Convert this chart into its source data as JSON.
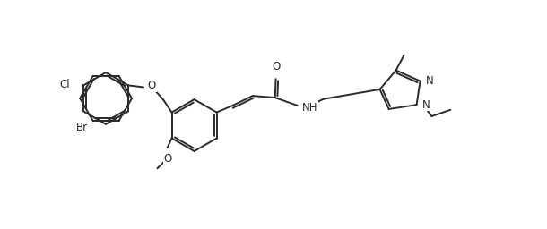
{
  "bg_color": "#ffffff",
  "line_color": "#2a2a2a",
  "line_width": 1.4,
  "font_size": 8.5,
  "figsize": [
    6.1,
    2.56
  ],
  "dpi": 100,
  "xlim": [
    0,
    13.5
  ],
  "ylim": [
    -0.5,
    5.8
  ]
}
